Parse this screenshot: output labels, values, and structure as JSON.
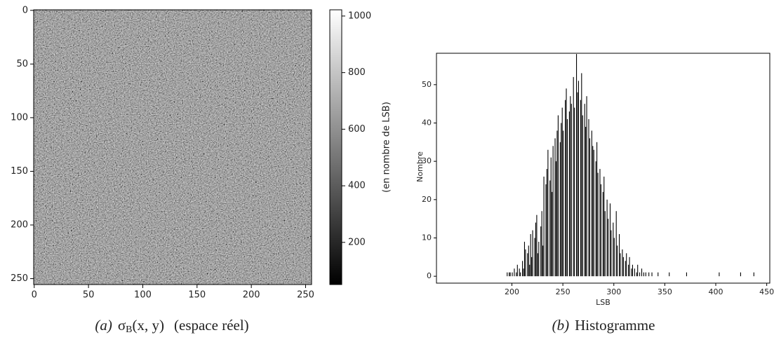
{
  "chart_data": [
    {
      "type": "image",
      "xlim": [
        -0.5,
        255.5
      ],
      "xticks": [
        0,
        50,
        100,
        150,
        200,
        250
      ],
      "ylim": [
        255.5,
        -0.5
      ],
      "yticks": [
        0,
        50,
        100,
        150,
        200,
        250
      ],
      "clim": [
        51,
        1022
      ],
      "cticks": [
        200,
        400,
        600,
        800,
        1000
      ],
      "cmap": [
        "#000000",
        "#ffffff"
      ],
      "colorbar_label": "(en nombre de LSB)",
      "caption": {
        "label": "(a)",
        "symbol": "σ",
        "subscript": "B",
        "args": "(x, y)",
        "text": "(espace réel)"
      }
    },
    {
      "type": "histogram",
      "color": "#000000",
      "bins": [
        190,
        191,
        192,
        193,
        194,
        195,
        196,
        197,
        198,
        199,
        200,
        201,
        202,
        203,
        204,
        205,
        206,
        207,
        208,
        209,
        210,
        211,
        212,
        213,
        214,
        215,
        216,
        217,
        218,
        219,
        220,
        221,
        222,
        223,
        224,
        225,
        226,
        227,
        228,
        229,
        230,
        231,
        232,
        233,
        234,
        235,
        236,
        237,
        238,
        239,
        240,
        241,
        242,
        243,
        244,
        245,
        246,
        247,
        248,
        249,
        250,
        251,
        252,
        253,
        254,
        255,
        256,
        257,
        258,
        259,
        260,
        261,
        262,
        263,
        264,
        265,
        266,
        267,
        268,
        269,
        270,
        271,
        272,
        273,
        274,
        275,
        276,
        277,
        278,
        279,
        280,
        281,
        282,
        283,
        284,
        285,
        286,
        287,
        288,
        289,
        290,
        291,
        292,
        293,
        294,
        295,
        296,
        297,
        298,
        299,
        300,
        301,
        302,
        303,
        304,
        305,
        306,
        307,
        308,
        309,
        310,
        311,
        312,
        313,
        314,
        315,
        316,
        317,
        318,
        319,
        320,
        321,
        322,
        323,
        324,
        325,
        326,
        327,
        328,
        329,
        330,
        331,
        332,
        333,
        334,
        335,
        336,
        337,
        338,
        339,
        340,
        341,
        342,
        343,
        344,
        345,
        346,
        347,
        348,
        349,
        350,
        351,
        352,
        353,
        354,
        355,
        356,
        357,
        358,
        359,
        360,
        361,
        362,
        363,
        364,
        365,
        366,
        367,
        368,
        369,
        370,
        371,
        372,
        373,
        374,
        375,
        376,
        377,
        378,
        379,
        380,
        381,
        382,
        383,
        384,
        385,
        386,
        387,
        388,
        389,
        390,
        391,
        392,
        393,
        394,
        395,
        396,
        397,
        398,
        399,
        400,
        401,
        402,
        403,
        404,
        405,
        406,
        407,
        408,
        409,
        410,
        411,
        412,
        413,
        414,
        415,
        416,
        417,
        418,
        419,
        420,
        421,
        422,
        423,
        424,
        425,
        426,
        427,
        428,
        429,
        430,
        431,
        432,
        433,
        434,
        435,
        436,
        437,
        438,
        439,
        440
      ],
      "values": [
        0,
        0,
        0,
        0,
        0,
        1,
        0,
        1,
        1,
        0,
        1,
        0,
        2,
        0,
        1,
        3,
        0,
        2,
        1,
        0,
        4,
        2,
        9,
        7,
        0,
        6,
        8,
        3,
        11,
        5,
        12,
        0,
        10,
        14,
        16,
        6,
        9,
        0,
        13,
        17,
        8,
        26,
        0,
        24,
        28,
        33,
        0,
        25,
        31,
        22,
        34,
        0,
        36,
        30,
        38,
        42,
        0,
        35,
        40,
        44,
        38,
        0,
        46,
        49,
        41,
        0,
        43,
        47,
        45,
        0,
        52,
        44,
        0,
        58,
        48,
        51,
        0,
        46,
        53,
        42,
        0,
        45,
        39,
        47,
        0,
        41,
        36,
        0,
        38,
        34,
        33,
        0,
        30,
        35,
        27,
        0,
        28,
        24,
        0,
        22,
        26,
        17,
        0,
        20,
        15,
        0,
        19,
        12,
        0,
        14,
        10,
        0,
        17,
        8,
        0,
        11,
        6,
        0,
        7,
        5,
        0,
        4,
        6,
        0,
        3,
        5,
        0,
        2,
        3,
        0,
        2,
        0,
        1,
        3,
        0,
        1,
        0,
        2,
        0,
        1,
        0,
        1,
        0,
        0,
        1,
        0,
        0,
        1,
        0,
        0,
        0,
        0,
        0,
        1,
        0,
        0,
        0,
        0,
        0,
        0,
        0,
        0,
        0,
        0,
        1,
        0,
        0,
        0,
        0,
        0,
        0,
        0,
        0,
        0,
        0,
        0,
        0,
        0,
        0,
        0,
        0,
        1,
        0,
        0,
        0,
        0,
        0,
        0,
        0,
        0,
        0,
        0,
        0,
        0,
        0,
        0,
        0,
        0,
        0,
        0,
        0,
        0,
        0,
        0,
        0,
        0,
        0,
        0,
        0,
        0,
        0,
        0,
        0,
        1,
        0,
        0,
        0,
        0,
        0,
        0,
        0,
        0,
        0,
        0,
        0,
        0,
        0,
        0,
        0,
        0,
        0,
        0,
        0,
        0,
        1,
        0,
        0,
        0,
        0,
        0,
        0,
        0,
        0,
        0,
        0,
        0,
        0,
        1,
        0,
        0
      ],
      "xlim": [
        126,
        453
      ],
      "xticks": [
        200,
        250,
        300,
        350,
        400,
        450
      ],
      "ylim": [
        -1.8,
        58.2
      ],
      "yticks": [
        0,
        10,
        20,
        30,
        40,
        50
      ],
      "xlabel": "LSB",
      "ylabel": "Nombre",
      "caption": {
        "label": "(b)",
        "text": "Histogramme"
      }
    }
  ]
}
